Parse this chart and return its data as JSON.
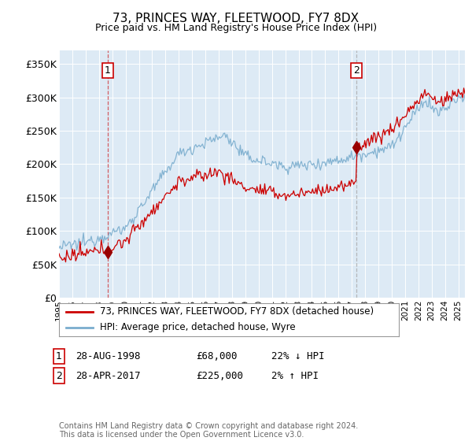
{
  "title": "73, PRINCES WAY, FLEETWOOD, FY7 8DX",
  "subtitle": "Price paid vs. HM Land Registry's House Price Index (HPI)",
  "xlim_start": 1995.0,
  "xlim_end": 2025.5,
  "ylim": [
    0,
    370000
  ],
  "yticks": [
    0,
    50000,
    100000,
    150000,
    200000,
    250000,
    300000,
    350000
  ],
  "ytick_labels": [
    "£0",
    "£50K",
    "£100K",
    "£150K",
    "£200K",
    "£250K",
    "£300K",
    "£350K"
  ],
  "transaction1_x": 1998.67,
  "transaction1_y": 68000,
  "transaction2_x": 2017.33,
  "transaction2_y": 225000,
  "legend_line1": "73, PRINCES WAY, FLEETWOOD, FY7 8DX (detached house)",
  "legend_line2": "HPI: Average price, detached house, Wyre",
  "table_row1": [
    "1",
    "28-AUG-1998",
    "£68,000",
    "22% ↓ HPI"
  ],
  "table_row2": [
    "2",
    "28-APR-2017",
    "£225,000",
    "2% ↑ HPI"
  ],
  "footer": "Contains HM Land Registry data © Crown copyright and database right 2024.\nThis data is licensed under the Open Government Licence v3.0.",
  "hpi_color": "#7aadce",
  "price_color": "#cc0000",
  "bg_color": "#ddeaf5",
  "grid_color": "#c8d8e8",
  "marker_color": "#990000"
}
